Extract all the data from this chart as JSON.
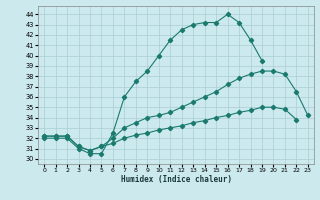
{
  "title": "",
  "xlabel": "Humidex (Indice chaleur)",
  "bg_color": "#cce9ee",
  "grid_color": "#aacdd4",
  "line_color": "#1a7a6e",
  "xlim": [
    -0.5,
    23.5
  ],
  "ylim": [
    29.5,
    44.8
  ],
  "xticks": [
    0,
    1,
    2,
    3,
    4,
    5,
    6,
    7,
    8,
    9,
    10,
    11,
    12,
    13,
    14,
    15,
    16,
    17,
    18,
    19,
    20,
    21,
    22,
    23
  ],
  "yticks": [
    30,
    31,
    32,
    33,
    34,
    35,
    36,
    37,
    38,
    39,
    40,
    41,
    42,
    43,
    44
  ],
  "curve1_x": [
    0,
    1,
    2,
    3,
    4,
    5,
    6,
    7,
    8,
    9,
    10,
    11,
    12,
    13,
    14,
    15,
    16,
    17,
    18,
    19
  ],
  "curve1_y": [
    32.0,
    32.0,
    32.0,
    31.0,
    30.5,
    30.5,
    32.5,
    36.0,
    37.5,
    38.5,
    40.0,
    41.5,
    42.5,
    43.0,
    43.2,
    43.2,
    44.0,
    43.2,
    41.5,
    39.5
  ],
  "curve2_x": [
    0,
    1,
    2,
    3,
    4,
    5,
    6,
    7,
    8,
    9,
    10,
    11,
    12,
    13,
    14,
    15,
    16,
    17,
    18,
    19,
    20,
    21,
    22,
    23
  ],
  "curve2_y": [
    32.2,
    32.2,
    32.2,
    31.2,
    30.8,
    31.2,
    32.0,
    33.0,
    33.5,
    34.0,
    34.2,
    34.5,
    35.0,
    35.5,
    36.0,
    36.5,
    37.2,
    37.8,
    38.2,
    38.5,
    38.5,
    38.2,
    36.5,
    34.2
  ],
  "curve3_x": [
    0,
    1,
    2,
    3,
    4,
    5,
    6,
    7,
    8,
    9,
    10,
    11,
    12,
    13,
    14,
    15,
    16,
    17,
    18,
    19,
    20,
    21,
    22
  ],
  "curve3_y": [
    32.2,
    32.2,
    32.2,
    31.2,
    30.8,
    31.2,
    31.5,
    32.0,
    32.3,
    32.5,
    32.8,
    33.0,
    33.2,
    33.5,
    33.7,
    34.0,
    34.2,
    34.5,
    34.7,
    35.0,
    35.0,
    34.8,
    33.8
  ]
}
